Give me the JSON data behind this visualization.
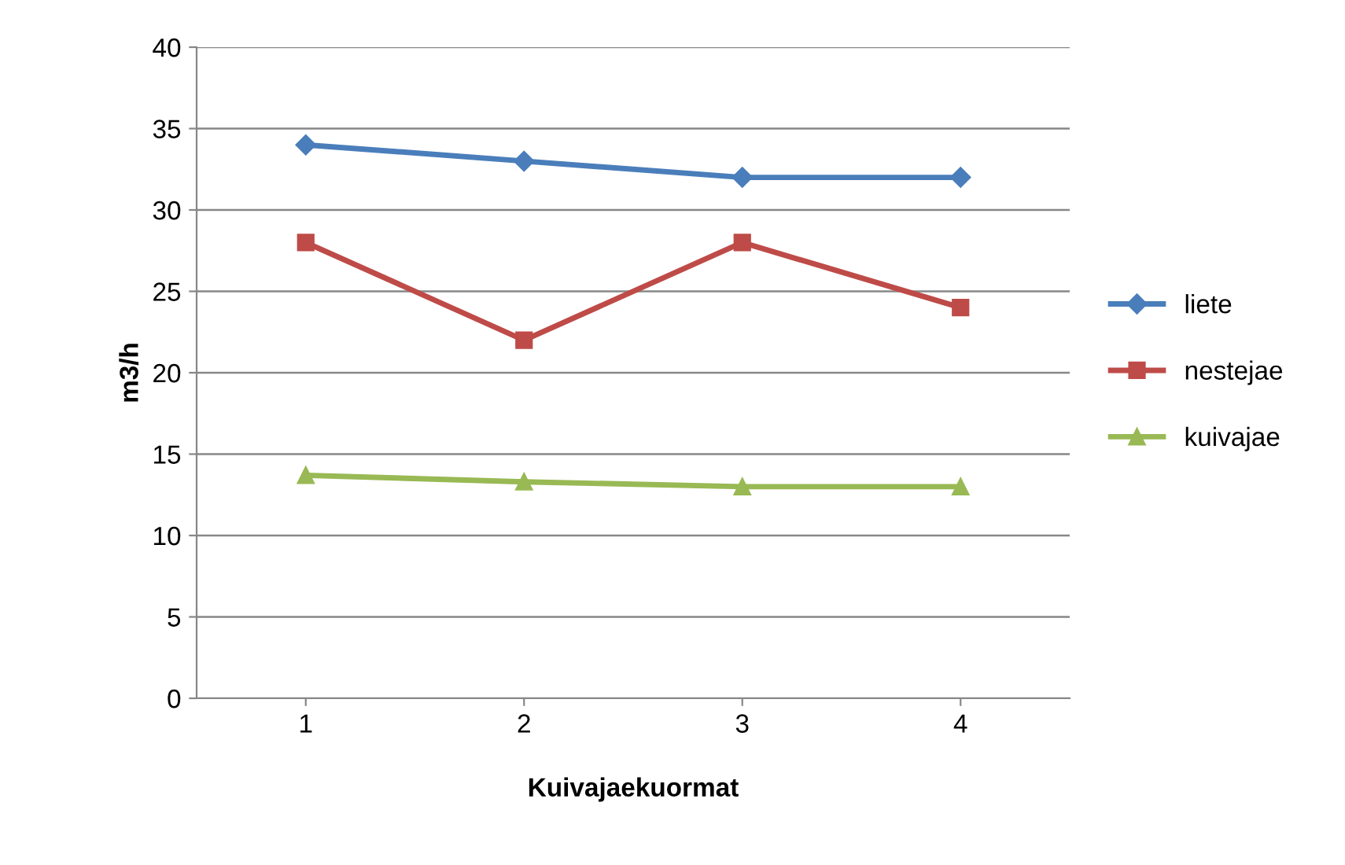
{
  "chart_data": {
    "type": "line",
    "xlabel": "Kuivajaekuormat",
    "ylabel": "m3/h",
    "categories": [
      "1",
      "2",
      "3",
      "4"
    ],
    "series": [
      {
        "name": "liete",
        "color": "#4a7ebb",
        "marker": "diamond",
        "values": [
          34,
          33,
          32,
          32
        ]
      },
      {
        "name": "nestejae",
        "color": "#be4b48",
        "marker": "square",
        "values": [
          28,
          22,
          28,
          24
        ]
      },
      {
        "name": "kuivajae",
        "color": "#98b954",
        "marker": "triangle",
        "values": [
          13.7,
          13.3,
          13,
          13
        ]
      }
    ],
    "ylim": [
      0,
      40
    ],
    "yticks": [
      0,
      5,
      10,
      15,
      20,
      25,
      30,
      35,
      40
    ],
    "grid": "y",
    "legend": "right",
    "line_style": "solid"
  }
}
